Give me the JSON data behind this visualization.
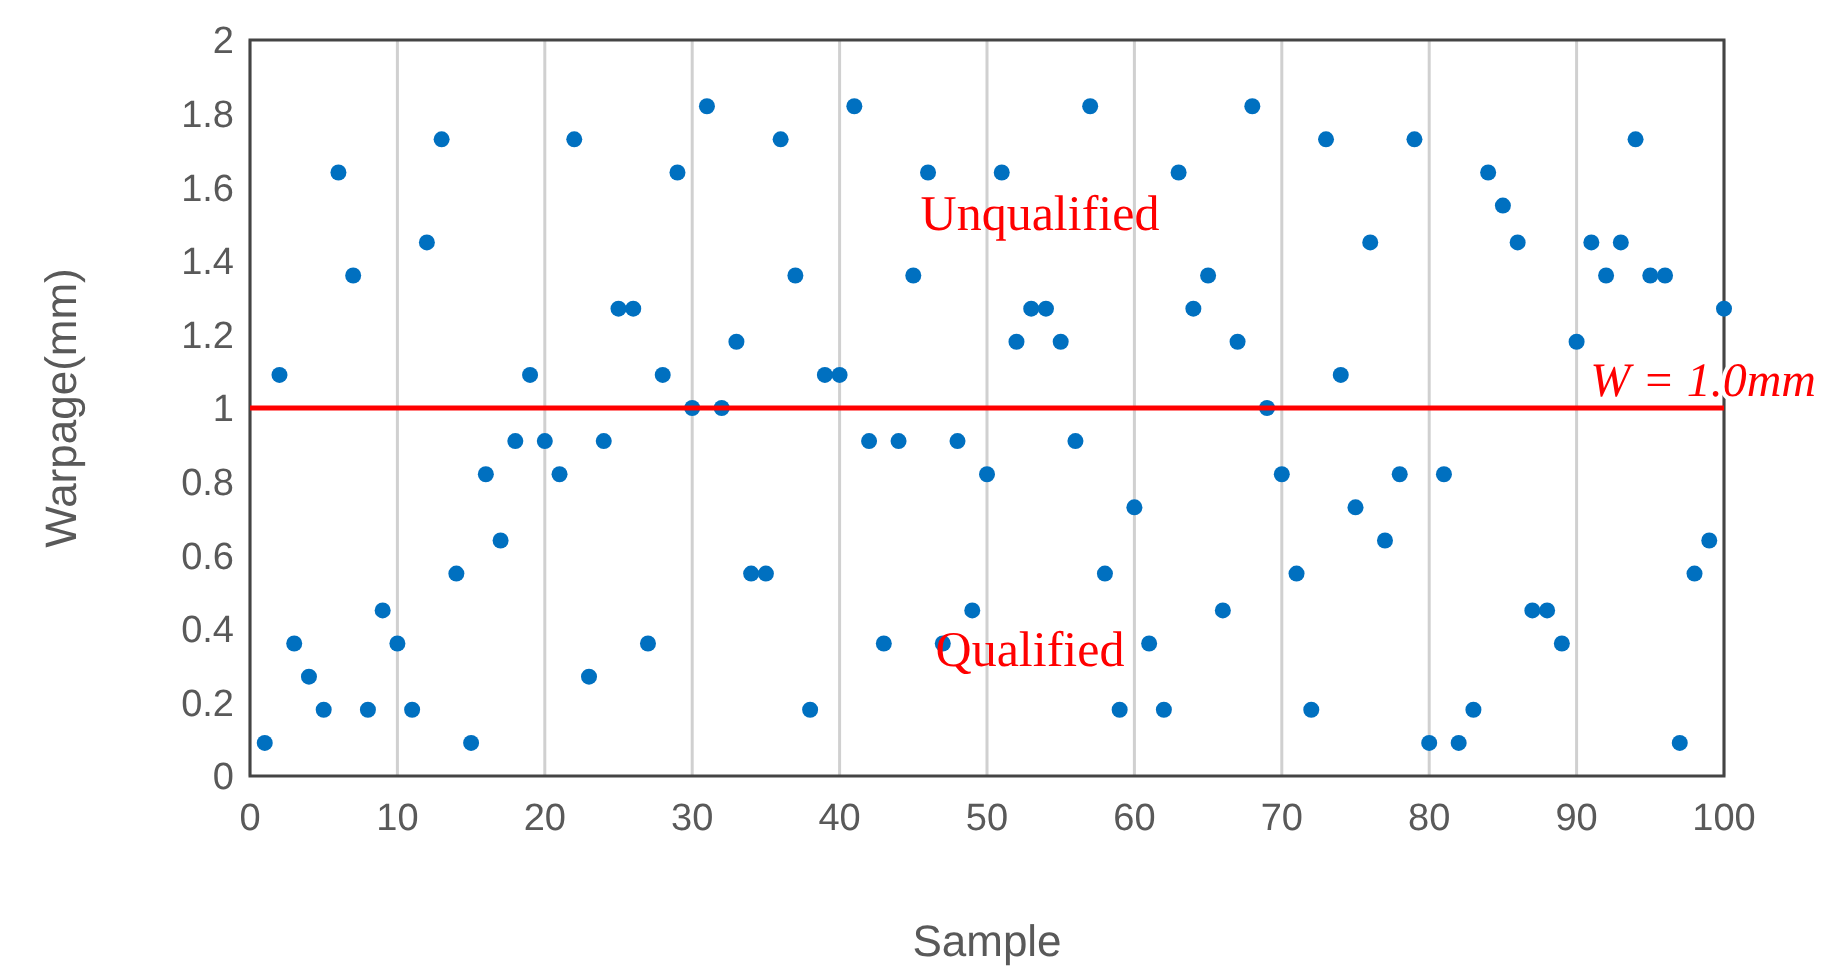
{
  "chart_data": {
    "type": "scatter",
    "xlabel": "Sample",
    "ylabel": "Warpage(mm)",
    "x": [
      1,
      2,
      3,
      4,
      5,
      6,
      7,
      8,
      9,
      10,
      11,
      12,
      13,
      14,
      15,
      16,
      17,
      18,
      19,
      20,
      21,
      22,
      23,
      24,
      25,
      26,
      27,
      28,
      29,
      30,
      31,
      32,
      33,
      34,
      35,
      36,
      37,
      38,
      39,
      40,
      41,
      42,
      43,
      44,
      45,
      46,
      47,
      48,
      49,
      50,
      51,
      52,
      53,
      54,
      55,
      56,
      57,
      58,
      59,
      60,
      61,
      62,
      63,
      64,
      65,
      66,
      67,
      68,
      69,
      70,
      71,
      72,
      73,
      74,
      75,
      76,
      77,
      78,
      79,
      80,
      81,
      82,
      83,
      84,
      85,
      86,
      87,
      88,
      89,
      90,
      91,
      92,
      93,
      94,
      95,
      96,
      97,
      98,
      99,
      100
    ],
    "series": [
      {
        "color": "#0070c0",
        "values": [
          0.09,
          1.09,
          0.36,
          0.27,
          0.18,
          1.64,
          1.36,
          0.18,
          0.45,
          0.36,
          0.18,
          1.45,
          1.73,
          0.55,
          0.09,
          0.82,
          0.64,
          0.91,
          1.09,
          0.91,
          0.82,
          1.73,
          0.27,
          0.91,
          1.27,
          1.27,
          0.36,
          1.09,
          1.64,
          1.0,
          1.82,
          1.0,
          1.18,
          0.55,
          0.55,
          1.73,
          1.36,
          0.18,
          1.09,
          1.09,
          1.82,
          0.91,
          0.36,
          0.91,
          1.36,
          1.64,
          0.36,
          0.91,
          0.45,
          0.82,
          1.64,
          1.18,
          1.27,
          1.27,
          1.18,
          0.91,
          1.82,
          0.55,
          0.18,
          0.73,
          0.36,
          0.18,
          1.64,
          1.27,
          1.36,
          0.45,
          1.18,
          1.82,
          1.0,
          0.82,
          0.55,
          0.18,
          1.73,
          1.09,
          0.73,
          1.45,
          0.64,
          0.82,
          1.73,
          0.09,
          0.82,
          0.09,
          0.18,
          1.64,
          1.55,
          1.45,
          0.45,
          0.45,
          0.36,
          1.18,
          1.45,
          1.36,
          1.45,
          1.73,
          1.36,
          1.36,
          0.09,
          0.55,
          0.64,
          1.27
        ]
      }
    ],
    "xlim": [
      0,
      100
    ],
    "xticks": [
      0,
      10,
      20,
      30,
      40,
      50,
      60,
      70,
      80,
      90,
      100
    ],
    "ylim": [
      0,
      2
    ],
    "yticks": [
      0,
      0.2,
      0.4,
      0.6,
      0.8,
      1,
      1.2,
      1.4,
      1.6,
      1.8,
      2
    ],
    "grid": "x",
    "marker": "circle",
    "ref_lines": [
      {
        "axis": "y",
        "value": 1,
        "label": "W = 1.0mm",
        "color": "#ff0000"
      }
    ],
    "annotations": [
      "Unqualified",
      "Qualified"
    ]
  }
}
